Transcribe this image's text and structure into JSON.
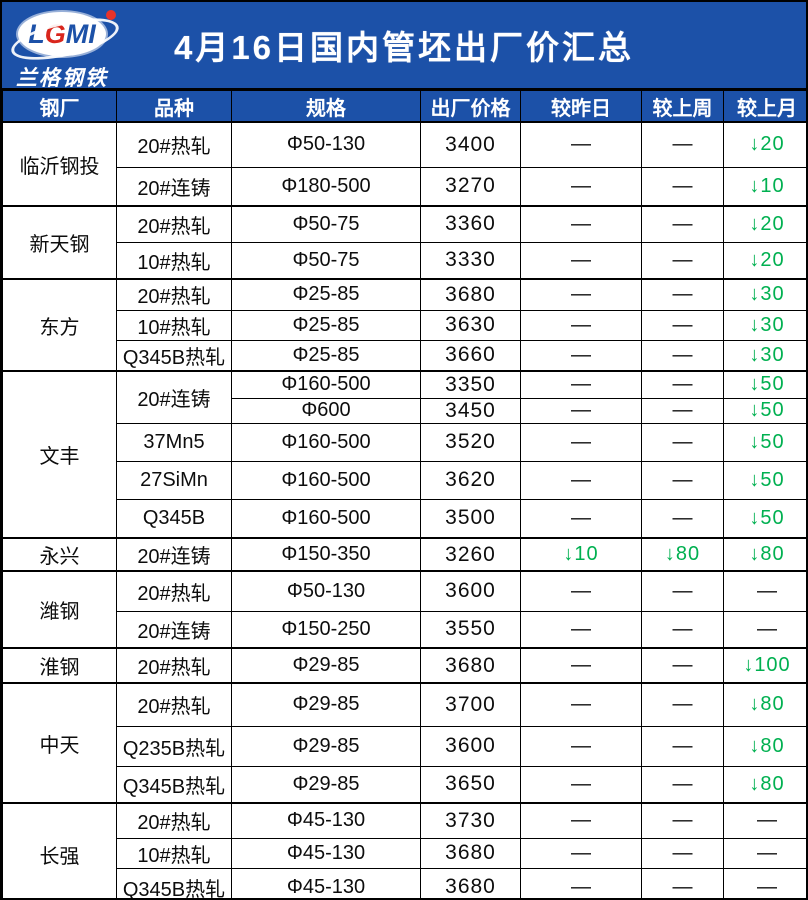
{
  "header": {
    "logo": {
      "letters": [
        "L",
        "G",
        "M",
        "I"
      ],
      "name": "兰格钢铁"
    },
    "title": "4月16日国内管坯出厂价汇总"
  },
  "table": {
    "columns": [
      "钢厂",
      "品种",
      "规格",
      "出厂价格",
      "较昨日",
      "较上周",
      "较上月"
    ],
    "rows": [
      {
        "mill": "临沂钢投",
        "mill_span": 2,
        "variety": "20#热轧",
        "variety_span": 1,
        "spec": "Φ50-130",
        "price": "3400",
        "vs_yesterday": "—",
        "vs_last_week": "—",
        "vs_last_month": "↓20"
      },
      {
        "variety": "20#连铸",
        "variety_span": 1,
        "spec": "Φ180-500",
        "price": "3270",
        "vs_yesterday": "—",
        "vs_last_week": "—",
        "vs_last_month": "↓10"
      },
      {
        "mill": "新天钢",
        "mill_span": 2,
        "variety": "20#热轧",
        "variety_span": 1,
        "spec": "Φ50-75",
        "price": "3360",
        "vs_yesterday": "—",
        "vs_last_week": "—",
        "vs_last_month": "↓20"
      },
      {
        "variety": "10#热轧",
        "variety_span": 1,
        "spec": "Φ50-75",
        "price": "3330",
        "vs_yesterday": "—",
        "vs_last_week": "—",
        "vs_last_month": "↓20"
      },
      {
        "mill": "东方",
        "mill_span": 3,
        "variety": "20#热轧",
        "variety_span": 1,
        "spec": "Φ25-85",
        "price": "3680",
        "vs_yesterday": "—",
        "vs_last_week": "—",
        "vs_last_month": "↓30"
      },
      {
        "variety": "10#热轧",
        "variety_span": 1,
        "spec": "Φ25-85",
        "price": "3630",
        "vs_yesterday": "—",
        "vs_last_week": "—",
        "vs_last_month": "↓30"
      },
      {
        "variety": "Q345B热轧",
        "variety_span": 1,
        "spec": "Φ25-85",
        "price": "3660",
        "vs_yesterday": "—",
        "vs_last_week": "—",
        "vs_last_month": "↓30"
      },
      {
        "mill": "文丰",
        "mill_span": 5,
        "variety": "20#连铸",
        "variety_span": 2,
        "spec": "Φ160-500",
        "price": "3350",
        "vs_yesterday": "—",
        "vs_last_week": "—",
        "vs_last_month": "↓50"
      },
      {
        "spec": "Φ600",
        "price": "3450",
        "vs_yesterday": "—",
        "vs_last_week": "—",
        "vs_last_month": "↓50"
      },
      {
        "variety": "37Mn5",
        "variety_span": 1,
        "spec": "Φ160-500",
        "price": "3520",
        "vs_yesterday": "—",
        "vs_last_week": "—",
        "vs_last_month": "↓50"
      },
      {
        "variety": "27SiMn",
        "variety_span": 1,
        "spec": "Φ160-500",
        "price": "3620",
        "vs_yesterday": "—",
        "vs_last_week": "—",
        "vs_last_month": "↓50"
      },
      {
        "variety": "Q345B",
        "variety_span": 1,
        "spec": "Φ160-500",
        "price": "3500",
        "vs_yesterday": "—",
        "vs_last_week": "—",
        "vs_last_month": "↓50"
      },
      {
        "mill": "永兴",
        "mill_span": 1,
        "variety": "20#连铸",
        "variety_span": 1,
        "spec": "Φ150-350",
        "price": "3260",
        "vs_yesterday": "↓10",
        "vs_last_week": "↓80",
        "vs_last_month": "↓80"
      },
      {
        "mill": "潍钢",
        "mill_span": 2,
        "variety": "20#热轧",
        "variety_span": 1,
        "spec": "Φ50-130",
        "price": "3600",
        "vs_yesterday": "—",
        "vs_last_week": "—",
        "vs_last_month": "—"
      },
      {
        "variety": "20#连铸",
        "variety_span": 1,
        "spec": "Φ150-250",
        "price": "3550",
        "vs_yesterday": "—",
        "vs_last_week": "—",
        "vs_last_month": "—"
      },
      {
        "mill": "淮钢",
        "mill_span": 1,
        "variety": "20#热轧",
        "variety_span": 1,
        "spec": "Φ29-85",
        "price": "3680",
        "vs_yesterday": "—",
        "vs_last_week": "—",
        "vs_last_month": "↓100"
      },
      {
        "mill": "中天",
        "mill_span": 3,
        "variety": "20#热轧",
        "variety_span": 1,
        "spec": "Φ29-85",
        "price": "3700",
        "vs_yesterday": "—",
        "vs_last_week": "—",
        "vs_last_month": "↓80"
      },
      {
        "variety": "Q235B热轧",
        "variety_span": 1,
        "spec": "Φ29-85",
        "price": "3600",
        "vs_yesterday": "—",
        "vs_last_week": "—",
        "vs_last_month": "↓80"
      },
      {
        "variety": "Q345B热轧",
        "variety_span": 1,
        "spec": "Φ29-85",
        "price": "3650",
        "vs_yesterday": "—",
        "vs_last_week": "—",
        "vs_last_month": "↓80"
      },
      {
        "mill": "长强",
        "mill_span": 3,
        "variety": "20#热轧",
        "variety_span": 1,
        "spec": "Φ45-130",
        "price": "3730",
        "vs_yesterday": "—",
        "vs_last_week": "—",
        "vs_last_month": "—"
      },
      {
        "variety": "10#热轧",
        "variety_span": 1,
        "spec": "Φ45-130",
        "price": "3680",
        "vs_yesterday": "—",
        "vs_last_week": "—",
        "vs_last_month": "—"
      },
      {
        "variety": "Q345B热轧",
        "variety_span": 1,
        "spec": "Φ45-130",
        "price": "3680",
        "vs_yesterday": "—",
        "vs_last_week": "—",
        "vs_last_month": "—"
      }
    ]
  },
  "colors": {
    "header_blue": "#1c51a8",
    "down_green": "#00b050",
    "logo_red": "#d9261c",
    "grid_black": "#000000"
  }
}
